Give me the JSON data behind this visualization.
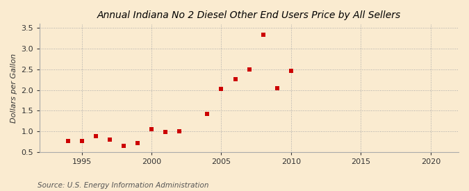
{
  "title": "Annual Indiana No 2 Diesel Other End Users Price by All Sellers",
  "ylabel": "Dollars per Gallon",
  "source": "Source: U.S. Energy Information Administration",
  "background_color": "#faebd0",
  "marker_color": "#cc0000",
  "years": [
    1994,
    1995,
    1996,
    1997,
    1998,
    1999,
    2000,
    2001,
    2002,
    2004,
    2005,
    2006,
    2007,
    2008,
    2009,
    2010
  ],
  "values": [
    0.77,
    0.77,
    0.88,
    0.8,
    0.65,
    0.72,
    1.06,
    0.98,
    1.01,
    1.42,
    2.03,
    2.27,
    2.5,
    3.33,
    2.04,
    2.46
  ],
  "xlim": [
    1992,
    2022
  ],
  "ylim": [
    0.5,
    3.6
  ],
  "xticks": [
    1995,
    2000,
    2005,
    2010,
    2015,
    2020
  ],
  "yticks": [
    0.5,
    1.0,
    1.5,
    2.0,
    2.5,
    3.0,
    3.5
  ],
  "title_fontsize": 10,
  "label_fontsize": 8,
  "tick_fontsize": 8,
  "source_fontsize": 7.5,
  "marker_size": 25
}
